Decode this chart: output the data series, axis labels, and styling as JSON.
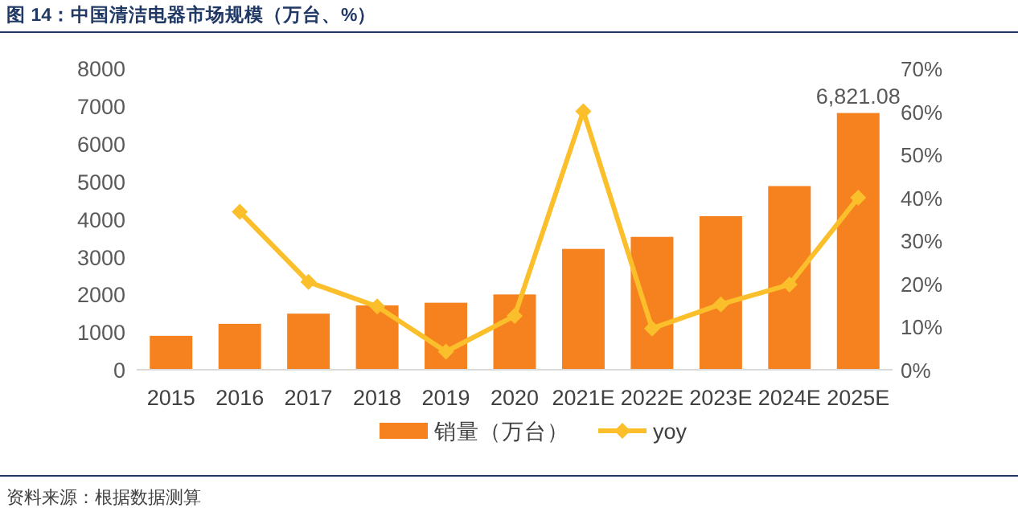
{
  "chart_data": {
    "type": "bar",
    "title": "图 14：中国清洁电器市场规模（万台、%）",
    "categories": [
      "2015",
      "2016",
      "2017",
      "2018",
      "2019",
      "2020",
      "2021E",
      "2022E",
      "2023E",
      "2024E",
      "2025E"
    ],
    "series": [
      {
        "name": "销量（万台）",
        "color": "#f5821f",
        "values": [
          900,
          1220,
          1490,
          1710,
          1780,
          2000,
          3210,
          3530,
          4080,
          4880,
          6821.08
        ],
        "value_labels": [
          null,
          null,
          null,
          null,
          null,
          null,
          null,
          null,
          null,
          null,
          "6,821.08"
        ]
      },
      {
        "name": "yoy",
        "type": "line",
        "axis": "y2",
        "color": "#fbbf2b",
        "marker": "diamond",
        "values": [
          null,
          36.7,
          20.4,
          14.7,
          4.2,
          12.5,
          60.1,
          9.6,
          15.2,
          19.8,
          40.0
        ]
      }
    ],
    "ylim": [
      0,
      8000
    ],
    "yticks": [
      0,
      1000,
      2000,
      3000,
      4000,
      5000,
      6000,
      7000,
      8000
    ],
    "y2lim": [
      0,
      70
    ],
    "y2ticks": [
      {
        "value": 0,
        "label": "0%"
      },
      {
        "value": 10,
        "label": "10%"
      },
      {
        "value": 20,
        "label": "20%"
      },
      {
        "value": 30,
        "label": "30%"
      },
      {
        "value": 40,
        "label": "40%"
      },
      {
        "value": 50,
        "label": "50%"
      },
      {
        "value": 60,
        "label": "60%"
      },
      {
        "value": 70,
        "label": "70%"
      }
    ],
    "legend": "bottom",
    "annotations": [
      "资料来源：根据数据测算"
    ]
  }
}
